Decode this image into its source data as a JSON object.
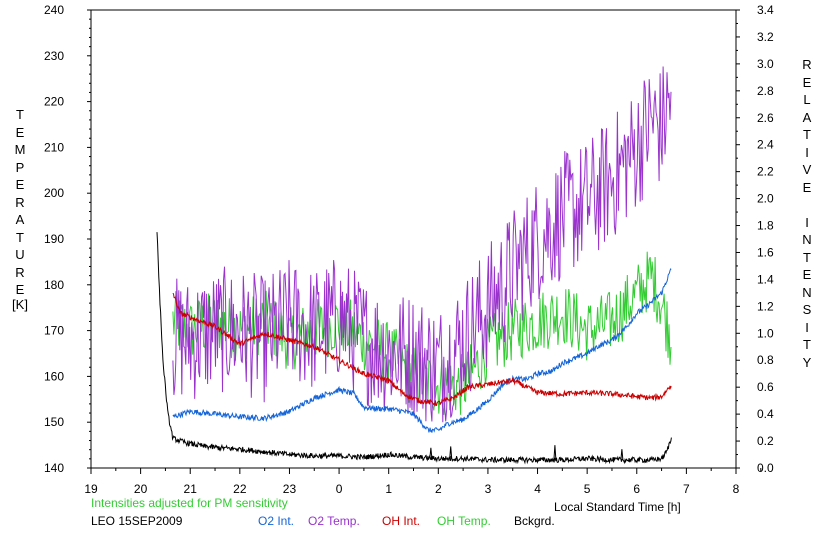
{
  "chart_data": {
    "type": "line",
    "left_axis": {
      "label": "TEMPERATURE",
      "unit": "[K]",
      "min": 140,
      "max": 240,
      "ticks": [
        140,
        150,
        160,
        170,
        180,
        190,
        200,
        210,
        220,
        230,
        240
      ]
    },
    "right_axis": {
      "label": "RELATIVE INTENSITY",
      "min": 0,
      "max": 3.4,
      "ticks": [
        "0.0",
        "0.2",
        "0.4",
        "0.6",
        "0.8",
        "1.0",
        "1.2",
        "1.4",
        "1.6",
        "1.8",
        "2.0",
        "2.2",
        "2.4",
        "2.6",
        "2.8",
        "3.0",
        "3.2",
        "3.4"
      ]
    },
    "x_axis": {
      "label": "Local Standard Time [h]",
      "min": 19,
      "max": 32,
      "tick_labels": [
        "19",
        "20",
        "21",
        "22",
        "23",
        "0",
        "1",
        "2",
        "3",
        "4",
        "5",
        "6",
        "7",
        "8"
      ]
    },
    "note": "Intensities adjusted for PM sensitivity",
    "station": "LEO 15SEP2009",
    "series": [
      {
        "name": "O2 Int.",
        "axis": "right",
        "color": "#1565d8",
        "x": [
          20.65,
          21.0,
          21.5,
          22.0,
          22.5,
          23.0,
          23.3,
          23.5,
          24.0,
          24.3,
          24.5,
          24.8,
          25.0,
          25.3,
          25.5,
          25.8,
          26.0,
          26.2,
          26.5,
          26.8,
          27.0,
          27.3,
          27.5,
          27.8,
          28.0,
          28.3,
          28.5,
          28.8,
          29.0,
          29.2,
          29.5,
          29.8,
          30.0,
          30.2,
          30.5,
          30.7
        ],
        "y": [
          0.38,
          0.42,
          0.4,
          0.38,
          0.37,
          0.42,
          0.48,
          0.52,
          0.58,
          0.55,
          0.45,
          0.44,
          0.44,
          0.42,
          0.4,
          0.28,
          0.28,
          0.33,
          0.36,
          0.44,
          0.5,
          0.62,
          0.66,
          0.66,
          0.7,
          0.72,
          0.78,
          0.82,
          0.85,
          0.9,
          0.95,
          1.05,
          1.15,
          1.2,
          1.3,
          1.48
        ]
      },
      {
        "name": "O2 Temp.",
        "axis": "left",
        "color": "#9933cc",
        "noise": 14,
        "x": [
          20.65,
          21.0,
          21.5,
          22.0,
          22.5,
          23.0,
          23.5,
          24.0,
          24.5,
          25.0,
          25.5,
          26.0,
          26.5,
          27.0,
          27.5,
          28.0,
          28.5,
          29.0,
          29.5,
          30.0,
          30.3,
          30.5,
          30.7
        ],
        "y": [
          168,
          168,
          170,
          170,
          168,
          172,
          170,
          173,
          168,
          165,
          165,
          162,
          168,
          175,
          183,
          190,
          195,
          198,
          203,
          210,
          216,
          214,
          222
        ]
      },
      {
        "name": "OH Int.",
        "axis": "right",
        "color": "#cc0000",
        "x": [
          20.65,
          20.8,
          21.0,
          21.5,
          22.0,
          22.5,
          23.0,
          23.5,
          24.0,
          24.5,
          25.0,
          25.3,
          25.6,
          26.0,
          26.3,
          26.6,
          27.0,
          27.5,
          28.0,
          28.5,
          29.0,
          29.5,
          30.0,
          30.3,
          30.5,
          30.7
        ],
        "y": [
          1.3,
          1.15,
          1.12,
          1.05,
          0.92,
          1.0,
          0.95,
          0.9,
          0.8,
          0.7,
          0.65,
          0.55,
          0.5,
          0.48,
          0.52,
          0.6,
          0.62,
          0.65,
          0.56,
          0.55,
          0.56,
          0.55,
          0.53,
          0.52,
          0.53,
          0.62
        ]
      },
      {
        "name": "OH Temp.",
        "axis": "left",
        "color": "#33cc33",
        "noise": 7,
        "x": [
          20.65,
          21.0,
          21.5,
          22.0,
          22.5,
          23.0,
          23.5,
          24.0,
          24.5,
          25.0,
          25.5,
          26.0,
          26.5,
          27.0,
          27.5,
          28.0,
          28.5,
          29.0,
          29.5,
          30.0,
          30.3,
          30.5,
          30.7
        ],
        "y": [
          172,
          170,
          172,
          170,
          172,
          168,
          170,
          172,
          168,
          165,
          160,
          158,
          158,
          166,
          170,
          172,
          174,
          170,
          172,
          178,
          182,
          176,
          168
        ]
      },
      {
        "name": "Bckgrd.",
        "axis": "right",
        "color": "#000000",
        "x": [
          20.33,
          20.38,
          20.45,
          20.55,
          20.65,
          20.8,
          21.0,
          21.3,
          21.6,
          22.0,
          22.5,
          23.0,
          23.5,
          24.0,
          24.5,
          25.0,
          25.5,
          26.0,
          26.5,
          27.0,
          27.5,
          28.0,
          28.5,
          29.0,
          29.5,
          30.0,
          30.3,
          30.5,
          30.6,
          30.7
        ],
        "y": [
          1.76,
          1.3,
          0.8,
          0.4,
          0.22,
          0.2,
          0.18,
          0.16,
          0.15,
          0.14,
          0.12,
          0.1,
          0.09,
          0.09,
          0.08,
          0.1,
          0.08,
          0.07,
          0.07,
          0.06,
          0.06,
          0.06,
          0.06,
          0.07,
          0.06,
          0.06,
          0.06,
          0.07,
          0.12,
          0.22
        ]
      }
    ],
    "spikes": [
      {
        "series": "Bckgrd.",
        "x": 25.85,
        "y": 0.15
      },
      {
        "series": "Bckgrd.",
        "x": 26.25,
        "y": 0.16
      },
      {
        "series": "Bckgrd.",
        "x": 28.35,
        "y": 0.17
      },
      {
        "series": "Bckgrd.",
        "x": 29.7,
        "y": 0.14
      }
    ]
  }
}
